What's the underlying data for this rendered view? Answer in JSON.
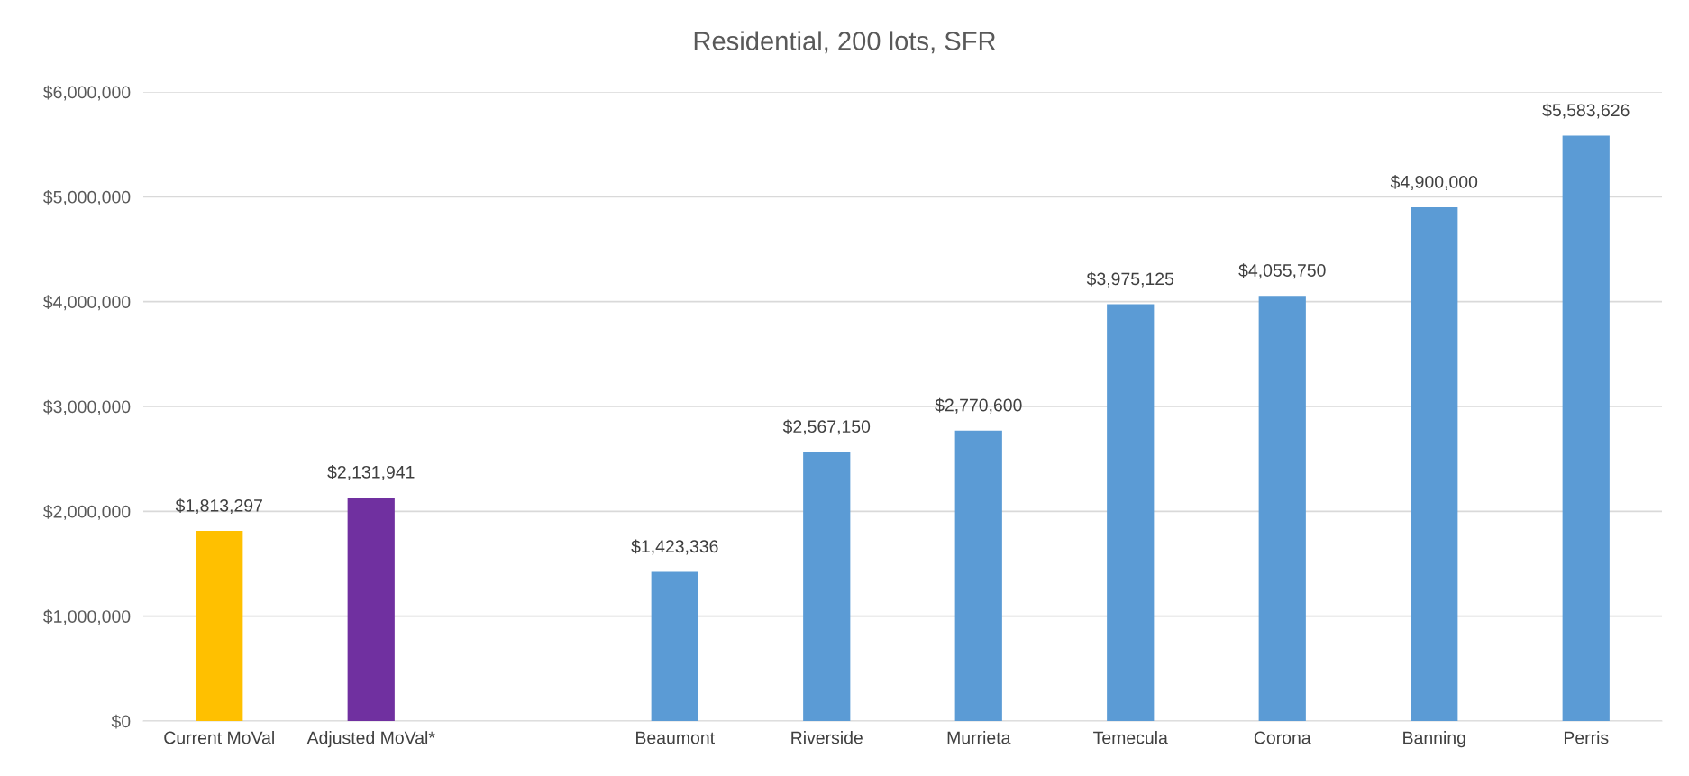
{
  "chart_data": {
    "type": "bar",
    "title": "Residential, 200 lots, SFR",
    "categories": [
      "Current MoVal",
      "Adjusted MoVal*",
      null,
      "Beaumont",
      "Riverside",
      "Murrieta",
      "Temecula",
      "Corona",
      "Banning",
      "Perris"
    ],
    "values": [
      1813297,
      2131941,
      null,
      1423336,
      2567150,
      2770600,
      3975125,
      4055750,
      4900000,
      5583626
    ],
    "colors": [
      "#ffc000",
      "#7030a0",
      null,
      "#5b9bd5",
      "#5b9bd5",
      "#5b9bd5",
      "#5b9bd5",
      "#5b9bd5",
      "#5b9bd5",
      "#5b9bd5"
    ],
    "value_labels": [
      "$1,813,297",
      "$2,131,941",
      null,
      "$1,423,336",
      "$2,567,150",
      "$2,770,600",
      "$3,975,125",
      "$4,055,750",
      "$4,900,000",
      "$5,583,626"
    ],
    "ylim": [
      0,
      6000000
    ],
    "yticks": [
      {
        "value": 0,
        "label": "$0"
      },
      {
        "value": 1000000,
        "label": "$1,000,000"
      },
      {
        "value": 2000000,
        "label": "$2,000,000"
      },
      {
        "value": 3000000,
        "label": "$3,000,000"
      },
      {
        "value": 4000000,
        "label": "$4,000,000"
      },
      {
        "value": 5000000,
        "label": "$5,000,000"
      },
      {
        "value": 6000000,
        "label": "$6,000,000"
      }
    ],
    "grid": "y",
    "legend": false
  }
}
